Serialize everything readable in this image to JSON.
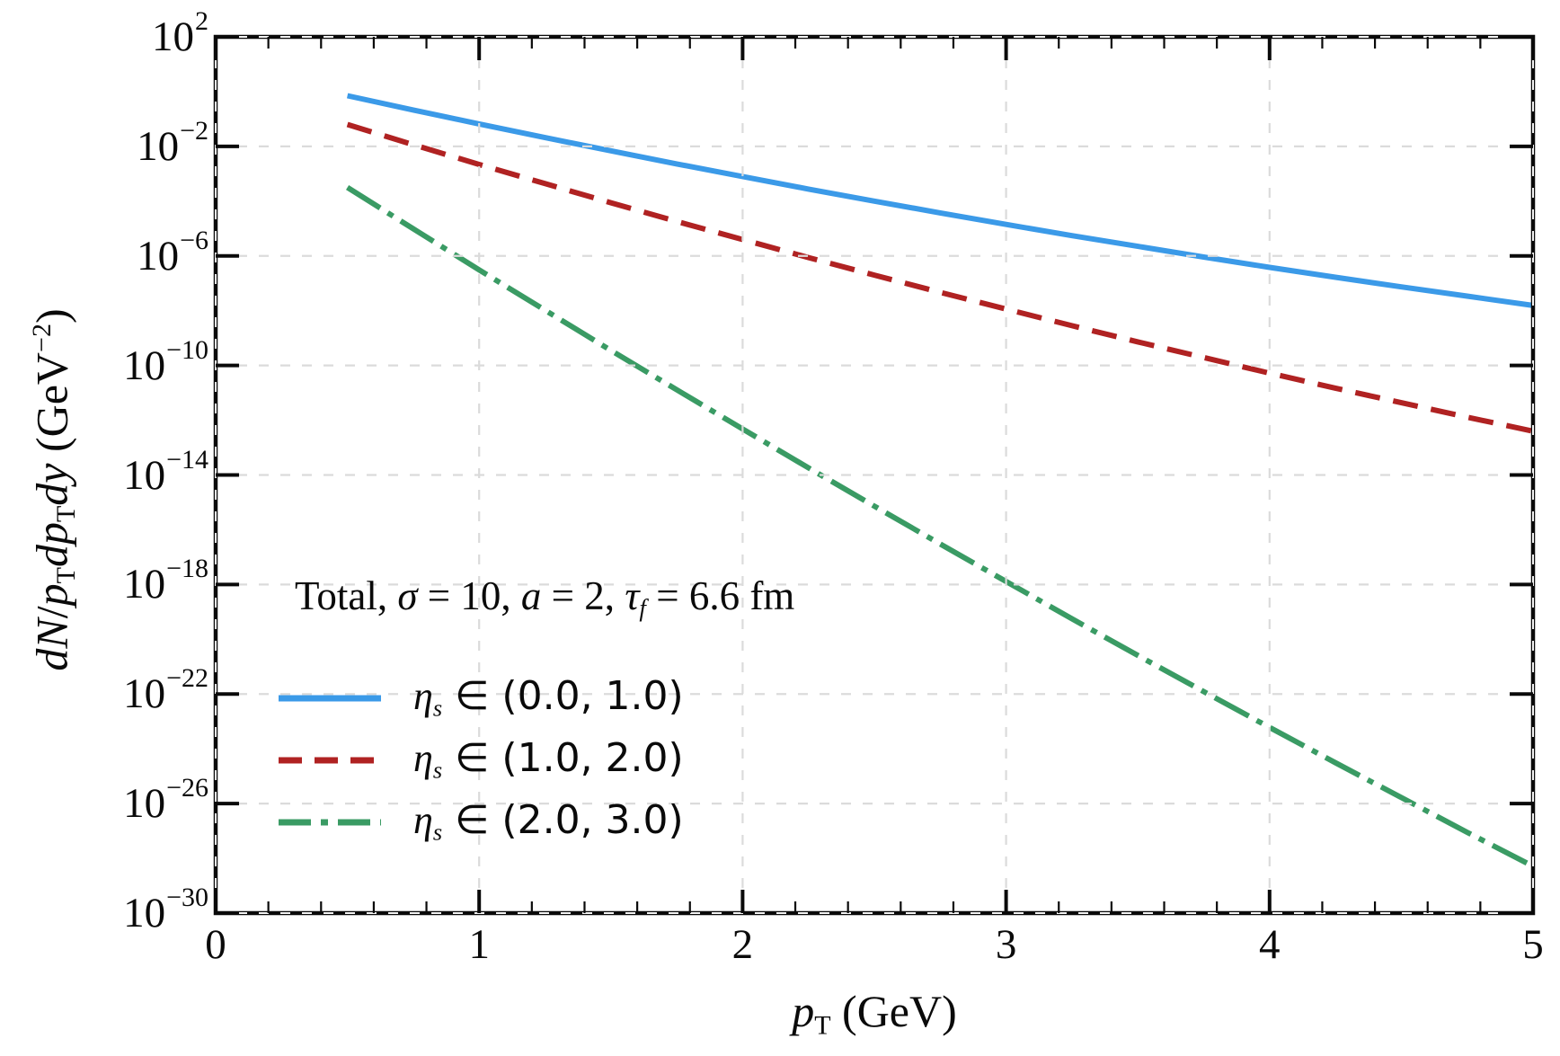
{
  "chart_data": {
    "type": "line",
    "title": "",
    "x_axis": {
      "label_parts": [
        {
          "text": "p",
          "style": "i"
        },
        {
          "text": "T",
          "style": "sub"
        },
        {
          "text": " (GeV)",
          "style": "r"
        }
      ],
      "min": 0,
      "max": 5,
      "major_ticks": [
        {
          "label": "0",
          "value": 0
        },
        {
          "label": "1",
          "value": 1
        },
        {
          "label": "2",
          "value": 2
        },
        {
          "label": "3",
          "value": 3
        },
        {
          "label": "4",
          "value": 4
        },
        {
          "label": "5",
          "value": 5
        }
      ],
      "minor_tick_step": 0.2
    },
    "y_axis": {
      "label_parts": [
        {
          "text": "dN",
          "style": "i"
        },
        {
          "text": "/",
          "style": "r"
        },
        {
          "text": "p",
          "style": "i"
        },
        {
          "text": "T",
          "style": "sub"
        },
        {
          "text": "dp",
          "style": "i"
        },
        {
          "text": "T",
          "style": "sub"
        },
        {
          "text": "dy",
          "style": "i"
        },
        {
          "text": " (GeV",
          "style": "r"
        },
        {
          "text": "−2",
          "style": "sup"
        },
        {
          "text": ")",
          "style": "r"
        }
      ],
      "scale": "log10",
      "min_exponent": -30,
      "max_exponent": 2,
      "major_ticks": [
        {
          "base": "10",
          "exp": "2",
          "value": 2
        },
        {
          "base": "10",
          "exp": "−2",
          "value": -2
        },
        {
          "base": "10",
          "exp": "−6",
          "value": -6
        },
        {
          "base": "10",
          "exp": "−10",
          "value": -10
        },
        {
          "base": "10",
          "exp": "−14",
          "value": -14
        },
        {
          "base": "10",
          "exp": "−18",
          "value": -18
        },
        {
          "base": "10",
          "exp": "−22",
          "value": -22
        },
        {
          "base": "10",
          "exp": "−26",
          "value": -26
        },
        {
          "base": "10",
          "exp": "−30",
          "value": -30
        }
      ]
    },
    "grid": {
      "on": true,
      "style": "dashed",
      "color": "#DBDBDB",
      "edge_color": "#F4F4F4",
      "above_data": true
    },
    "annotation_parts": [
      {
        "text": "Total, ",
        "style": "r"
      },
      {
        "text": "σ",
        "style": "i"
      },
      {
        "text": " = 10, ",
        "style": "r"
      },
      {
        "text": "a",
        "style": "i"
      },
      {
        "text": " = 2, ",
        "style": "r"
      },
      {
        "text": "τ",
        "style": "i"
      },
      {
        "text": "f",
        "style": "isub"
      },
      {
        "text": " = 6.6 fm",
        "style": "r"
      }
    ],
    "legend": {
      "position": "lower-left",
      "frame": false,
      "entries": [
        {
          "symbol": "η",
          "symbol_sub": "s",
          "operator": " ∈ ",
          "range": "(0.0, 1.0)",
          "series": 0
        },
        {
          "symbol": "η",
          "symbol_sub": "s",
          "operator": " ∈ ",
          "range": "(1.0, 2.0)",
          "series": 1
        },
        {
          "symbol": "η",
          "symbol_sub": "s",
          "operator": " ∈ ",
          "range": "(2.0, 3.0)",
          "series": 2
        }
      ]
    },
    "x": [
      0.5,
      0.75,
      1.0,
      1.25,
      1.5,
      1.75,
      2.0,
      2.25,
      2.5,
      2.75,
      3.0,
      3.25,
      3.5,
      3.75,
      4.0,
      4.25,
      4.5,
      4.75,
      5.0
    ],
    "series": [
      {
        "name": "eta_s in (0.0, 1.0)",
        "color": "#3B9AE8",
        "line_style": "solid",
        "log10_y": [
          -0.15,
          -0.67,
          -1.18,
          -1.68,
          -2.16,
          -2.64,
          -3.1,
          -3.56,
          -4.0,
          -4.43,
          -4.85,
          -5.26,
          -5.65,
          -6.04,
          -6.42,
          -6.78,
          -7.13,
          -7.47,
          -7.81
        ]
      },
      {
        "name": "eta_s in (1.0, 2.0)",
        "color": "#B02222",
        "line_style": "dashed",
        "log10_y": [
          -1.2,
          -1.94,
          -2.66,
          -3.36,
          -4.06,
          -4.74,
          -5.4,
          -6.06,
          -6.7,
          -7.33,
          -7.94,
          -8.55,
          -9.14,
          -9.71,
          -10.28,
          -10.83,
          -11.36,
          -11.89,
          -12.4
        ]
      },
      {
        "name": "eta_s in (2.0, 3.0)",
        "color": "#3A9B64",
        "line_style": "dashdot",
        "log10_y": [
          -3.5,
          -5.01,
          -6.51,
          -7.98,
          -9.45,
          -10.89,
          -12.32,
          -13.74,
          -15.14,
          -16.52,
          -17.89,
          -19.25,
          -20.59,
          -21.91,
          -23.22,
          -24.51,
          -25.78,
          -27.05,
          -28.29
        ]
      }
    ]
  }
}
